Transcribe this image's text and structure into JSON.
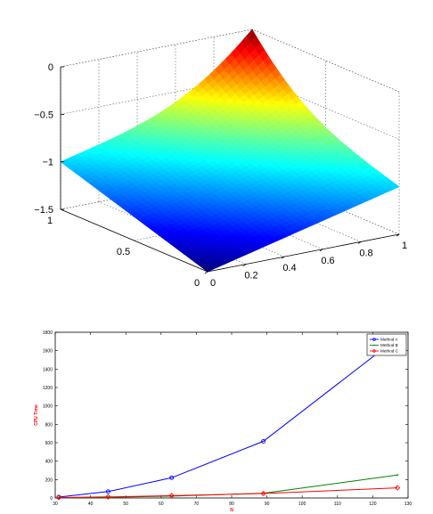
{
  "chart_data": [
    {
      "type": "surface",
      "x_ticks": [
        "0",
        "0.2",
        "0.4",
        "0.6",
        "0.8",
        "1"
      ],
      "y_ticks": [
        "0",
        "0.5",
        "1"
      ],
      "z_ticks": [
        "0",
        "−0.5",
        "−1",
        "−1.5"
      ],
      "xlim": [
        0,
        1
      ],
      "ylim": [
        0,
        1
      ],
      "zlim": [
        -1.5,
        0
      ],
      "grid": true,
      "colormap": "jet",
      "surface_samples": {
        "corner_x0_y0": -1.5,
        "corner_x1_y0": -1.0,
        "corner_x0_y1": -1.0,
        "corner_x1_y1": 0.0
      }
    },
    {
      "type": "line",
      "xlabel": "N",
      "ylabel": "CPU Time",
      "xlim": [
        30,
        130
      ],
      "ylim": [
        0,
        1800
      ],
      "x_ticks": [
        "30",
        "40",
        "50",
        "60",
        "70",
        "80",
        "90",
        "100",
        "110",
        "120",
        "130"
      ],
      "y_ticks": [
        "0",
        "200",
        "400",
        "600",
        "800",
        "1000",
        "1200",
        "1400",
        "1600",
        "1800"
      ],
      "legend_position": "top-right",
      "x": [
        31,
        45,
        63,
        89,
        127
      ],
      "series": [
        {
          "name": "Method A",
          "color": "#0000ff",
          "marker": "circle",
          "values": [
            10,
            70,
            220,
            615,
            1740
          ]
        },
        {
          "name": "Method B",
          "color": "#008000",
          "marker": "point",
          "values": [
            3,
            8,
            20,
            50,
            250
          ]
        },
        {
          "name": "Method C",
          "color": "#ff0000",
          "marker": "diamond",
          "values": [
            5,
            12,
            25,
            48,
            110
          ]
        }
      ],
      "label_color": "#ff0000"
    }
  ]
}
